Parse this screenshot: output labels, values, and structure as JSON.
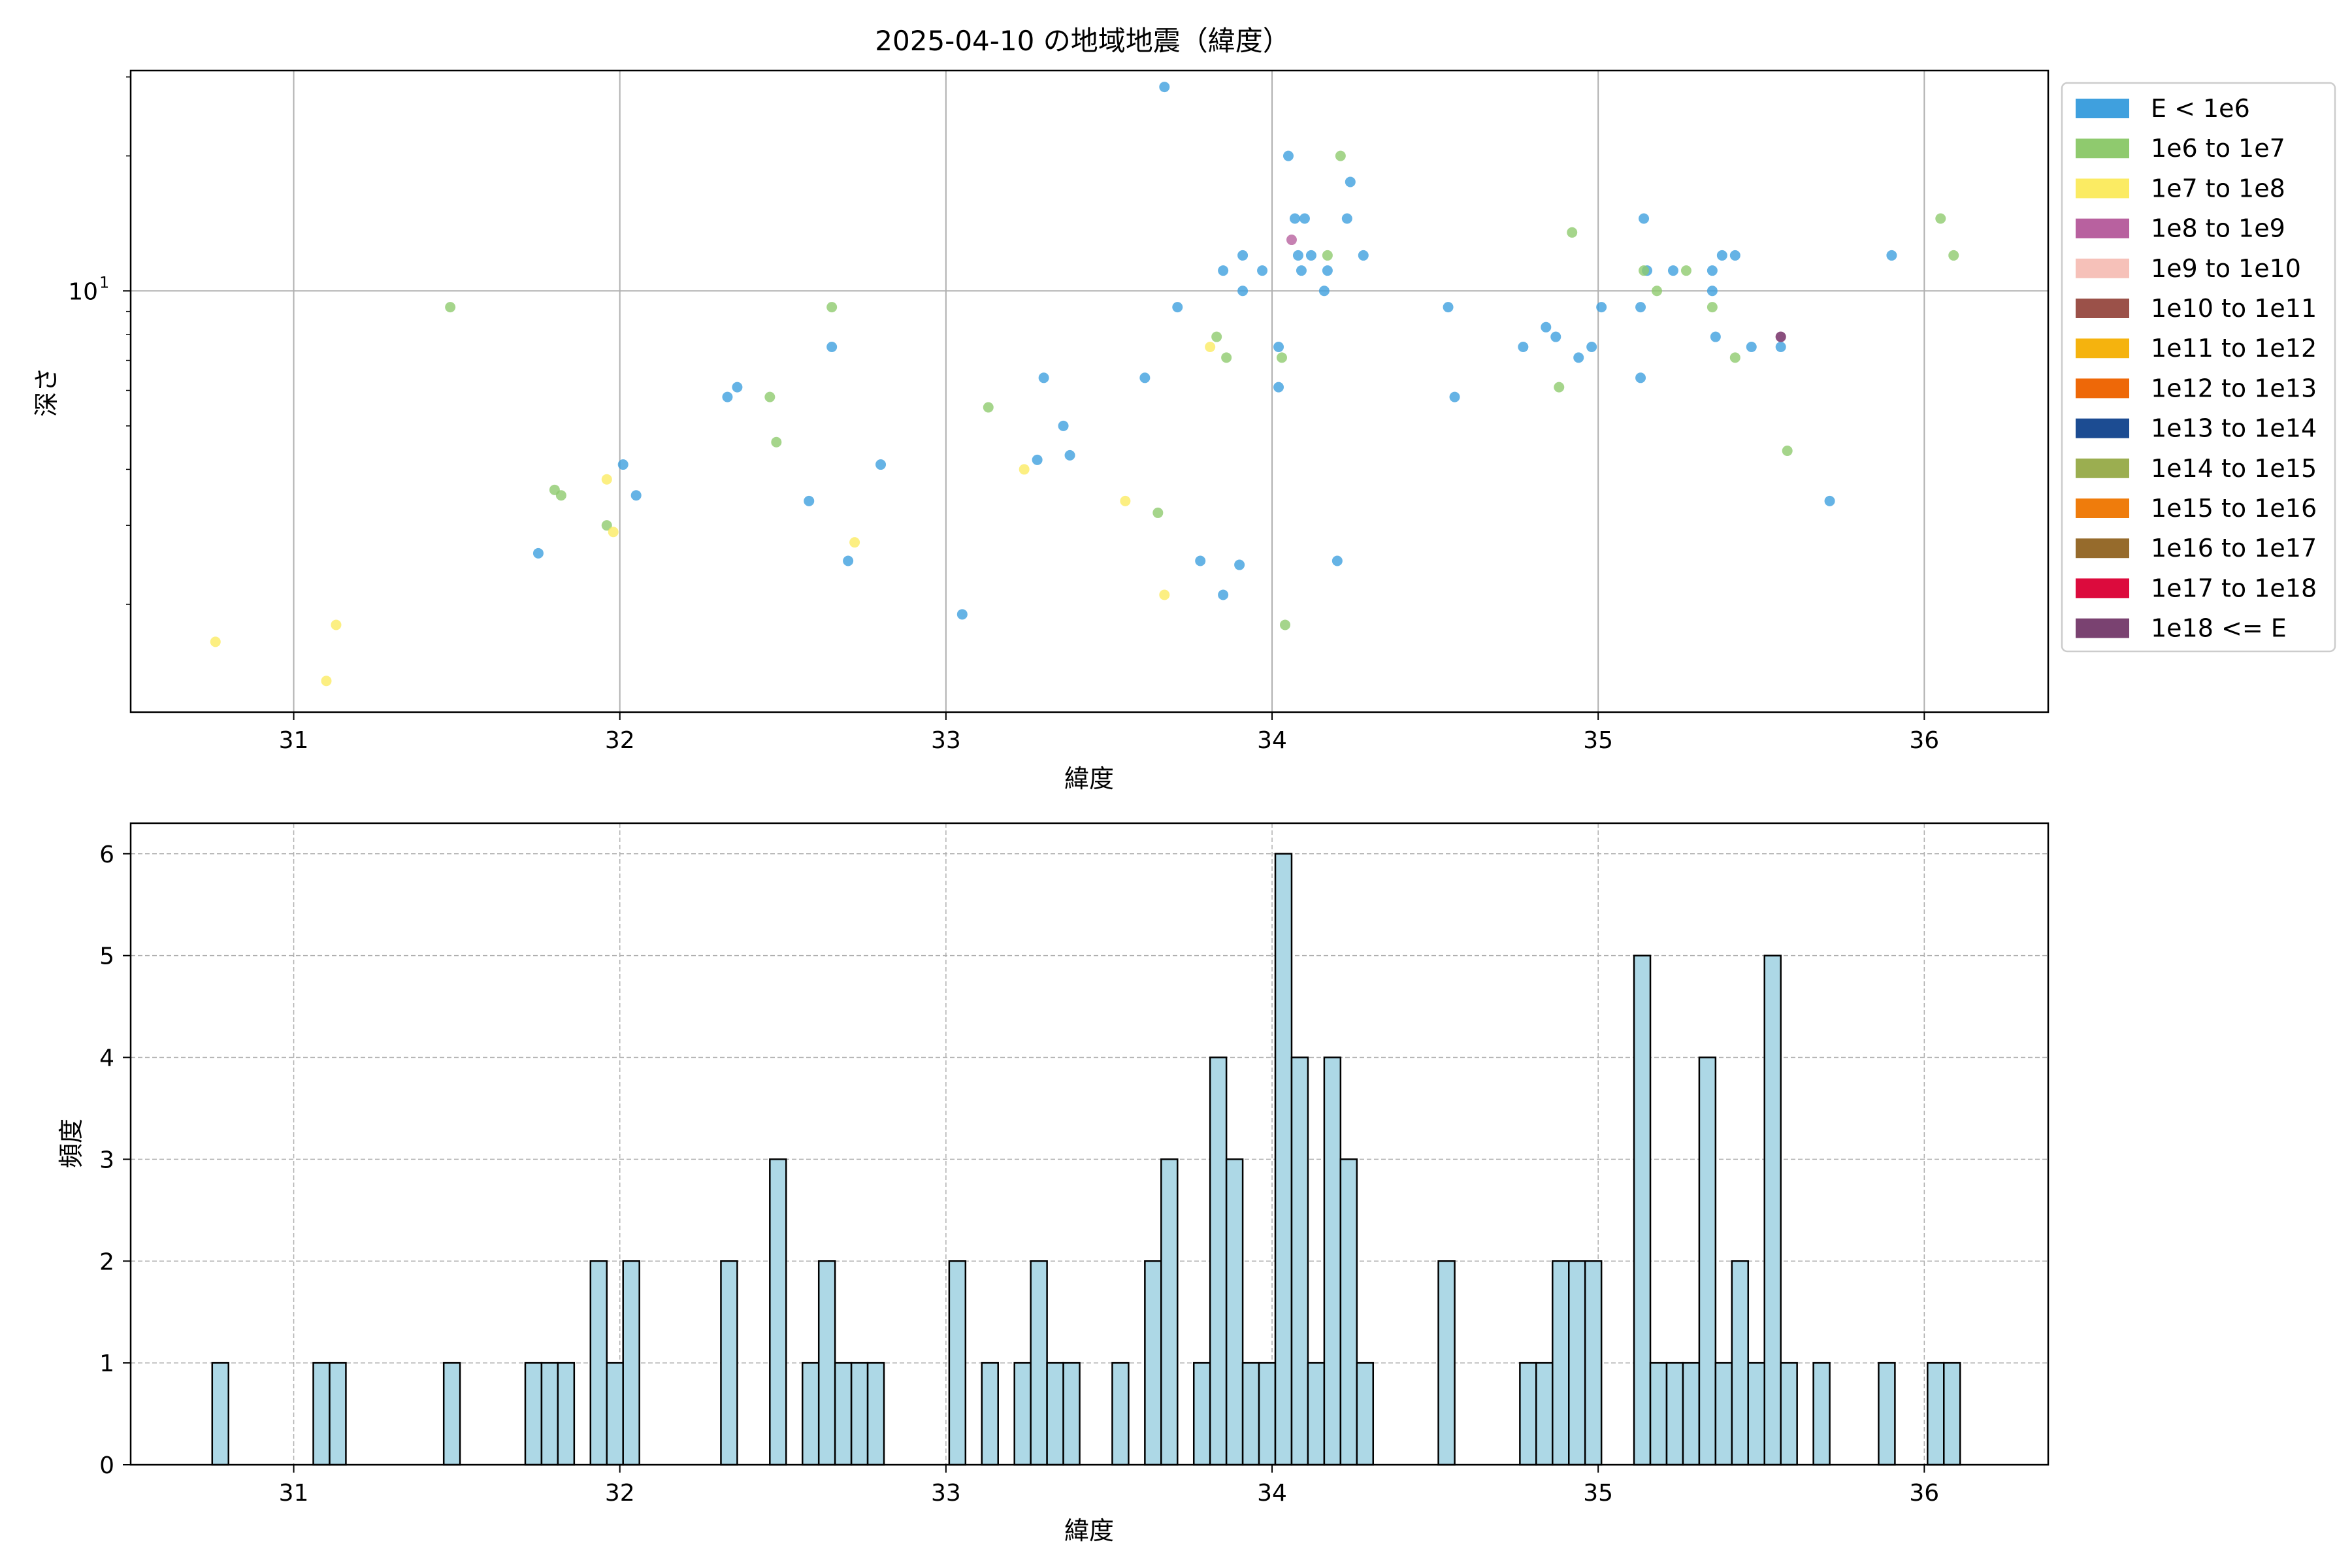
{
  "chart_data": [
    {
      "type": "scatter",
      "title": "2025-04-10 の地域地震（緯度）",
      "xlabel": "緯度",
      "ylabel": "深さ",
      "xlim": [
        30.5,
        36.38
      ],
      "ylim": [
        1.15,
        31
      ],
      "yscale": "log",
      "xticks": [
        31,
        32,
        33,
        34,
        35,
        36
      ],
      "yticks": [
        {
          "value": 10,
          "base": "10",
          "exp": "1"
        }
      ],
      "grid": true,
      "legend_position": "outside-right",
      "legend": [
        {
          "label": "E < 1e6",
          "color": "#3fa0de"
        },
        {
          "label": "1e6 to 1e7",
          "color": "#8fca6e"
        },
        {
          "label": "1e7 to 1e8",
          "color": "#fbeb63"
        },
        {
          "label": "1e8 to 1e9",
          "color": "#b8619f"
        },
        {
          "label": "1e9 to 1e10",
          "color": "#f6c1b9"
        },
        {
          "label": "1e10 to 1e11",
          "color": "#9b5149"
        },
        {
          "label": "1e11 to 1e12",
          "color": "#f5b30e"
        },
        {
          "label": "1e12 to 1e13",
          "color": "#ee6808"
        },
        {
          "label": "1e13 to 1e14",
          "color": "#1c4c92"
        },
        {
          "label": "1e14 to 1e15",
          "color": "#9bae50"
        },
        {
          "label": "1e15 to 1e16",
          "color": "#ef7c0c"
        },
        {
          "label": "1e16 to 1e17",
          "color": "#966b2c"
        },
        {
          "label": "1e17 to 1e18",
          "color": "#dc0b3d"
        },
        {
          "label": "1e18 <= E",
          "color": "#7a4271"
        }
      ],
      "series": [
        {
          "class": 0,
          "points": [
            [
              31.75,
              2.6
            ],
            [
              32.01,
              4.1
            ],
            [
              32.05,
              3.5
            ],
            [
              32.33,
              5.8
            ],
            [
              32.36,
              6.1
            ],
            [
              32.58,
              3.4
            ],
            [
              32.65,
              7.5
            ],
            [
              32.7,
              2.5
            ],
            [
              32.8,
              4.1
            ],
            [
              33.05,
              1.9
            ],
            [
              33.28,
              4.2
            ],
            [
              33.3,
              6.4
            ],
            [
              33.36,
              5.0
            ],
            [
              33.38,
              4.3
            ],
            [
              33.61,
              6.4
            ],
            [
              33.71,
              9.2
            ],
            [
              33.67,
              28.5
            ],
            [
              33.78,
              2.5
            ],
            [
              33.85,
              11.1
            ],
            [
              33.85,
              2.1
            ],
            [
              33.9,
              2.45
            ],
            [
              33.91,
              10.0
            ],
            [
              33.91,
              12.0
            ],
            [
              33.97,
              11.1
            ],
            [
              34.02,
              7.5
            ],
            [
              34.02,
              6.1
            ],
            [
              34.05,
              20.0
            ],
            [
              34.07,
              14.5
            ],
            [
              34.08,
              12.0
            ],
            [
              34.09,
              11.1
            ],
            [
              34.1,
              14.5
            ],
            [
              34.12,
              12.0
            ],
            [
              34.16,
              10.0
            ],
            [
              34.17,
              11.1
            ],
            [
              34.2,
              2.5
            ],
            [
              34.23,
              14.5
            ],
            [
              34.24,
              17.5
            ],
            [
              34.28,
              12.0
            ],
            [
              34.54,
              9.2
            ],
            [
              34.56,
              5.8
            ],
            [
              34.77,
              7.5
            ],
            [
              34.84,
              8.3
            ],
            [
              34.87,
              7.9
            ],
            [
              34.94,
              7.1
            ],
            [
              34.98,
              7.5
            ],
            [
              35.01,
              9.2
            ],
            [
              35.13,
              9.2
            ],
            [
              35.13,
              6.4
            ],
            [
              35.14,
              14.5
            ],
            [
              35.15,
              11.1
            ],
            [
              35.23,
              11.1
            ],
            [
              35.35,
              10.0
            ],
            [
              35.35,
              11.1
            ],
            [
              35.36,
              7.9
            ],
            [
              35.38,
              12.0
            ],
            [
              35.42,
              12.0
            ],
            [
              35.47,
              7.5
            ],
            [
              35.56,
              7.5
            ],
            [
              35.71,
              3.4
            ],
            [
              35.9,
              12.0
            ]
          ]
        },
        {
          "class": 1,
          "points": [
            [
              31.48,
              9.2
            ],
            [
              31.8,
              3.6
            ],
            [
              31.82,
              3.5
            ],
            [
              31.96,
              3.0
            ],
            [
              32.46,
              5.8
            ],
            [
              32.48,
              4.6
            ],
            [
              32.65,
              9.2
            ],
            [
              33.13,
              5.5
            ],
            [
              33.65,
              3.2
            ],
            [
              33.83,
              7.9
            ],
            [
              33.86,
              7.1
            ],
            [
              34.03,
              7.1
            ],
            [
              34.04,
              1.8
            ],
            [
              34.17,
              12.0
            ],
            [
              34.21,
              20.0
            ],
            [
              34.88,
              6.1
            ],
            [
              34.92,
              13.5
            ],
            [
              35.14,
              11.1
            ],
            [
              35.18,
              10.0
            ],
            [
              35.27,
              11.1
            ],
            [
              35.35,
              9.2
            ],
            [
              35.42,
              7.1
            ],
            [
              35.58,
              4.4
            ],
            [
              36.05,
              14.5
            ],
            [
              36.09,
              12.0
            ]
          ]
        },
        {
          "class": 2,
          "points": [
            [
              30.76,
              1.65
            ],
            [
              31.1,
              1.35
            ],
            [
              31.13,
              1.8
            ],
            [
              31.96,
              3.8
            ],
            [
              31.98,
              2.9
            ],
            [
              32.72,
              2.75
            ],
            [
              33.24,
              4.0
            ],
            [
              33.55,
              3.4
            ],
            [
              33.67,
              2.1
            ],
            [
              33.81,
              7.5
            ]
          ]
        },
        {
          "class": 3,
          "points": [
            [
              34.06,
              13.0
            ],
            [
              35.56,
              7.9
            ]
          ]
        },
        {
          "class": 13,
          "points": [
            [
              35.56,
              7.9
            ]
          ]
        }
      ]
    },
    {
      "type": "bar",
      "xlabel": "緯度",
      "ylabel": "頻度",
      "xlim": [
        30.5,
        36.38
      ],
      "ylim": [
        0,
        6.3
      ],
      "xticks": [
        31,
        32,
        33,
        34,
        35,
        36
      ],
      "yticks": [
        0,
        1,
        2,
        3,
        4,
        5,
        6
      ],
      "grid": true,
      "color": "#add8e6",
      "edge_color": "#000000",
      "bin_width": 0.05,
      "bins": [
        [
          30.75,
          1
        ],
        [
          31.06,
          1
        ],
        [
          31.11,
          1
        ],
        [
          31.46,
          1
        ],
        [
          31.71,
          1
        ],
        [
          31.76,
          1
        ],
        [
          31.81,
          1
        ],
        [
          31.91,
          2
        ],
        [
          31.96,
          1
        ],
        [
          32.01,
          2
        ],
        [
          32.31,
          2
        ],
        [
          32.46,
          3
        ],
        [
          32.56,
          1
        ],
        [
          32.61,
          2
        ],
        [
          32.66,
          1
        ],
        [
          32.71,
          1
        ],
        [
          32.76,
          1
        ],
        [
          33.01,
          2
        ],
        [
          33.11,
          1
        ],
        [
          33.21,
          1
        ],
        [
          33.26,
          2
        ],
        [
          33.31,
          1
        ],
        [
          33.36,
          1
        ],
        [
          33.51,
          1
        ],
        [
          33.61,
          2
        ],
        [
          33.66,
          3
        ],
        [
          33.76,
          1
        ],
        [
          33.81,
          4
        ],
        [
          33.86,
          3
        ],
        [
          33.91,
          1
        ],
        [
          33.96,
          1
        ],
        [
          34.01,
          6
        ],
        [
          34.06,
          4
        ],
        [
          34.11,
          1
        ],
        [
          34.16,
          4
        ],
        [
          34.21,
          3
        ],
        [
          34.26,
          1
        ],
        [
          34.51,
          2
        ],
        [
          34.76,
          1
        ],
        [
          34.81,
          1
        ],
        [
          34.86,
          2
        ],
        [
          34.91,
          2
        ],
        [
          34.96,
          2
        ],
        [
          35.11,
          5
        ],
        [
          35.16,
          1
        ],
        [
          35.21,
          1
        ],
        [
          35.26,
          1
        ],
        [
          35.31,
          4
        ],
        [
          35.36,
          1
        ],
        [
          35.41,
          2
        ],
        [
          35.46,
          1
        ],
        [
          35.51,
          5
        ],
        [
          35.56,
          1
        ],
        [
          35.66,
          1
        ],
        [
          35.86,
          1
        ],
        [
          36.01,
          1
        ],
        [
          36.06,
          1
        ]
      ]
    }
  ]
}
